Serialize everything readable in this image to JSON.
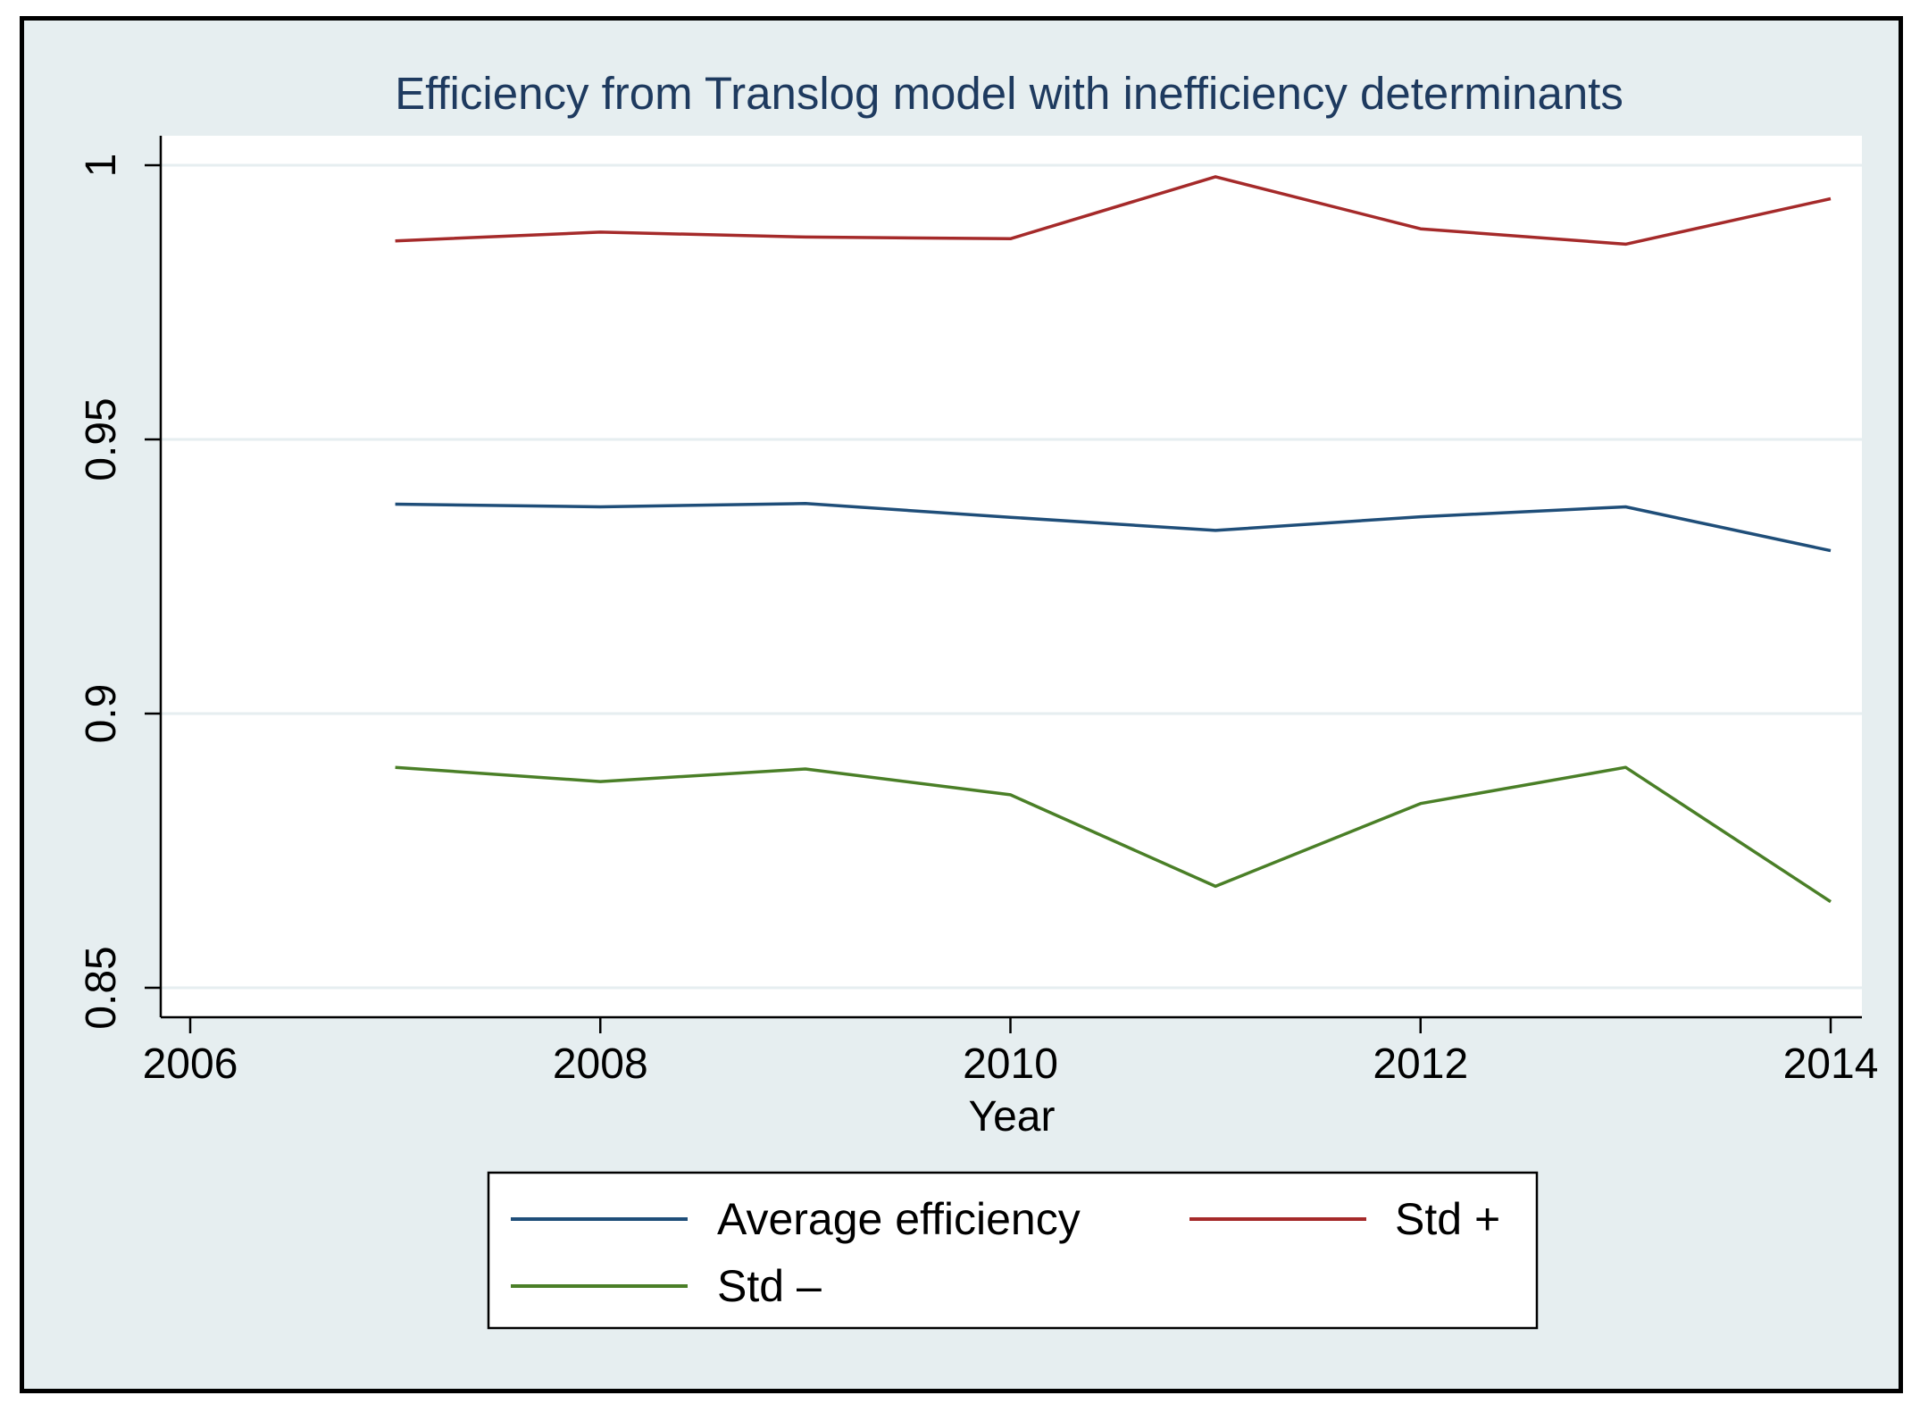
{
  "chart_data": {
    "type": "line",
    "title": "Efficiency from Translog model with inefficiency determinants",
    "xlabel": "Year",
    "ylabel": "",
    "xlim": [
      2006,
      2014
    ],
    "ylim": [
      0.85,
      1.0
    ],
    "xticks": [
      "2006",
      "2008",
      "2010",
      "2012",
      "2014"
    ],
    "yticks": [
      "0.85",
      "0.9",
      "0.95",
      "1"
    ],
    "grid": true,
    "legend_position": "bottom",
    "x": [
      2007,
      2008,
      2009,
      2010,
      2011,
      2012,
      2013,
      2014
    ],
    "series": [
      {
        "name": "Average efficiency",
        "color": "#1f4e79",
        "values": [
          0.9382,
          0.9377,
          0.9383,
          0.9358,
          0.9334,
          0.9359,
          0.9377,
          0.9297
        ]
      },
      {
        "name": "Std +",
        "color": "#a52a2a",
        "values": [
          0.9862,
          0.9878,
          0.9869,
          0.9866,
          0.9979,
          0.9884,
          0.9856,
          0.9939
        ]
      },
      {
        "name": "Std –",
        "color": "#4a7f27",
        "values": [
          0.8902,
          0.8876,
          0.8899,
          0.8852,
          0.8685,
          0.8836,
          0.8902,
          0.8657
        ]
      }
    ]
  }
}
